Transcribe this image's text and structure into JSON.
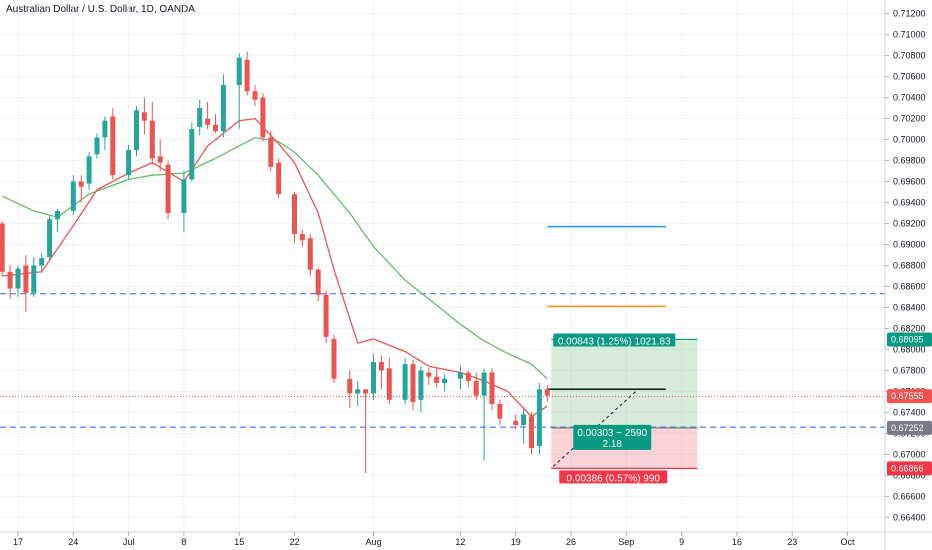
{
  "chart_data": {
    "type": "candlestick",
    "title": "Australian Dollar / U.S. Dollar, 1D, OANDA",
    "xlabel": "",
    "ylabel": "",
    "ylim": [
      0.6626,
      0.7133
    ],
    "x_tick_labels": [
      "17",
      "24",
      "Jul",
      "8",
      "15",
      "22",
      "Aug",
      "12",
      "19",
      "26",
      "Sep",
      "9",
      "16",
      "23",
      "Oct"
    ],
    "x_tick_days": [
      0,
      7,
      14,
      21,
      28,
      35,
      45,
      56,
      63,
      70,
      77,
      84,
      91,
      98,
      105
    ],
    "y_ticks": [
      0.712,
      0.71,
      0.708,
      0.706,
      0.704,
      0.702,
      0.7,
      0.698,
      0.696,
      0.694,
      0.692,
      0.69,
      0.688,
      0.686,
      0.684,
      0.682,
      0.68,
      0.678,
      0.676,
      0.674,
      0.672,
      0.67,
      0.668,
      0.666,
      0.664
    ],
    "y_tick_labels": [
      "0.71200",
      "0.71000",
      "0.70800",
      "0.70600",
      "0.70400",
      "0.70200",
      "0.70000",
      "0.69800",
      "0.69600",
      "0.69400",
      "0.69200",
      "0.69000",
      "0.68800",
      "0.68600",
      "0.68400",
      "0.68200",
      "0.68000",
      "0.67800",
      "0.67600",
      "0.67400",
      "0.67200",
      "0.67000",
      "0.66800",
      "0.66600",
      "0.66400"
    ],
    "candles": [
      {
        "d": -2,
        "o": 0.692,
        "h": 0.6922,
        "l": 0.687,
        "c": 0.6874
      },
      {
        "d": -1,
        "o": 0.6874,
        "h": 0.688,
        "l": 0.6848,
        "c": 0.6858
      },
      {
        "d": 0,
        "o": 0.6858,
        "h": 0.688,
        "l": 0.685,
        "c": 0.6877
      },
      {
        "d": 1,
        "o": 0.688,
        "h": 0.689,
        "l": 0.6836,
        "c": 0.6854
      },
      {
        "d": 2,
        "o": 0.6854,
        "h": 0.6888,
        "l": 0.685,
        "c": 0.688
      },
      {
        "d": 3,
        "o": 0.688,
        "h": 0.6892,
        "l": 0.6873,
        "c": 0.6887
      },
      {
        "d": 4,
        "o": 0.6888,
        "h": 0.6928,
        "l": 0.6885,
        "c": 0.6924
      },
      {
        "d": 5,
        "o": 0.6924,
        "h": 0.6934,
        "l": 0.6912,
        "c": 0.6932
      },
      {
        "d": 7,
        "o": 0.6932,
        "h": 0.6966,
        "l": 0.6928,
        "c": 0.696
      },
      {
        "d": 8,
        "o": 0.696,
        "h": 0.6966,
        "l": 0.694,
        "c": 0.6955
      },
      {
        "d": 9,
        "o": 0.6958,
        "h": 0.6988,
        "l": 0.6952,
        "c": 0.6984
      },
      {
        "d": 10,
        "o": 0.6986,
        "h": 0.7006,
        "l": 0.6982,
        "c": 0.7002
      },
      {
        "d": 11,
        "o": 0.7002,
        "h": 0.7022,
        "l": 0.699,
        "c": 0.7018
      },
      {
        "d": 12,
        "o": 0.7022,
        "h": 0.703,
        "l": 0.6962,
        "c": 0.6966
      },
      {
        "d": 14,
        "o": 0.6966,
        "h": 0.6995,
        "l": 0.6962,
        "c": 0.699
      },
      {
        "d": 15,
        "o": 0.699,
        "h": 0.7032,
        "l": 0.6984,
        "c": 0.7028
      },
      {
        "d": 16,
        "o": 0.7026,
        "h": 0.704,
        "l": 0.7005,
        "c": 0.7018
      },
      {
        "d": 17,
        "o": 0.7018,
        "h": 0.7036,
        "l": 0.6976,
        "c": 0.6982
      },
      {
        "d": 18,
        "o": 0.6984,
        "h": 0.7,
        "l": 0.697,
        "c": 0.6978
      },
      {
        "d": 19,
        "o": 0.6976,
        "h": 0.698,
        "l": 0.6924,
        "c": 0.693
      },
      {
        "d": 21,
        "o": 0.693,
        "h": 0.697,
        "l": 0.6912,
        "c": 0.6962
      },
      {
        "d": 22,
        "o": 0.6962,
        "h": 0.7016,
        "l": 0.696,
        "c": 0.701
      },
      {
        "d": 23,
        "o": 0.7012,
        "h": 0.7038,
        "l": 0.7004,
        "c": 0.703
      },
      {
        "d": 24,
        "o": 0.702,
        "h": 0.7036,
        "l": 0.701,
        "c": 0.7014
      },
      {
        "d": 25,
        "o": 0.7014,
        "h": 0.7024,
        "l": 0.7006,
        "c": 0.7008
      },
      {
        "d": 26,
        "o": 0.7008,
        "h": 0.7062,
        "l": 0.7002,
        "c": 0.7052
      },
      {
        "d": 28,
        "o": 0.7052,
        "h": 0.7082,
        "l": 0.701,
        "c": 0.7078
      },
      {
        "d": 29,
        "o": 0.7076,
        "h": 0.7084,
        "l": 0.7042,
        "c": 0.7046
      },
      {
        "d": 30,
        "o": 0.7046,
        "h": 0.7052,
        "l": 0.7032,
        "c": 0.7038
      },
      {
        "d": 31,
        "o": 0.704,
        "h": 0.7044,
        "l": 0.6998,
        "c": 0.7002
      },
      {
        "d": 32,
        "o": 0.7002,
        "h": 0.7008,
        "l": 0.697,
        "c": 0.6974
      },
      {
        "d": 33,
        "o": 0.6978,
        "h": 0.6982,
        "l": 0.6944,
        "c": 0.6948
      },
      {
        "d": 35,
        "o": 0.6948,
        "h": 0.695,
        "l": 0.6902,
        "c": 0.691
      },
      {
        "d": 36,
        "o": 0.691,
        "h": 0.6914,
        "l": 0.6898,
        "c": 0.6904
      },
      {
        "d": 37,
        "o": 0.6906,
        "h": 0.691,
        "l": 0.687,
        "c": 0.6876
      },
      {
        "d": 38,
        "o": 0.6876,
        "h": 0.6878,
        "l": 0.6846,
        "c": 0.6852
      },
      {
        "d": 39,
        "o": 0.6852,
        "h": 0.6856,
        "l": 0.6806,
        "c": 0.6812
      },
      {
        "d": 40,
        "o": 0.681,
        "h": 0.6814,
        "l": 0.6768,
        "c": 0.6772
      },
      {
        "d": 42,
        "o": 0.6772,
        "h": 0.678,
        "l": 0.6744,
        "c": 0.6758
      },
      {
        "d": 43,
        "o": 0.6758,
        "h": 0.677,
        "l": 0.6746,
        "c": 0.6762
      },
      {
        "d": 44,
        "o": 0.6762,
        "h": 0.6762,
        "l": 0.6682,
        "c": 0.6758
      },
      {
        "d": 45,
        "o": 0.6758,
        "h": 0.6796,
        "l": 0.6752,
        "c": 0.6788
      },
      {
        "d": 46,
        "o": 0.6788,
        "h": 0.6794,
        "l": 0.6762,
        "c": 0.678
      },
      {
        "d": 47,
        "o": 0.6782,
        "h": 0.6792,
        "l": 0.6748,
        "c": 0.6752
      },
      {
        "d": 49,
        "o": 0.6752,
        "h": 0.6792,
        "l": 0.6748,
        "c": 0.6786
      },
      {
        "d": 50,
        "o": 0.6786,
        "h": 0.679,
        "l": 0.6742,
        "c": 0.675
      },
      {
        "d": 51,
        "o": 0.6752,
        "h": 0.6784,
        "l": 0.674,
        "c": 0.678
      },
      {
        "d": 52,
        "o": 0.6778,
        "h": 0.6782,
        "l": 0.6766,
        "c": 0.6774
      },
      {
        "d": 53,
        "o": 0.6774,
        "h": 0.6782,
        "l": 0.6764,
        "c": 0.6768
      },
      {
        "d": 54,
        "o": 0.6768,
        "h": 0.6776,
        "l": 0.676,
        "c": 0.6772
      },
      {
        "d": 56,
        "o": 0.6772,
        "h": 0.6784,
        "l": 0.6762,
        "c": 0.6778
      },
      {
        "d": 57,
        "o": 0.6778,
        "h": 0.678,
        "l": 0.6764,
        "c": 0.677
      },
      {
        "d": 58,
        "o": 0.677,
        "h": 0.6778,
        "l": 0.6752,
        "c": 0.6756
      },
      {
        "d": 59,
        "o": 0.6756,
        "h": 0.6782,
        "l": 0.6694,
        "c": 0.6778
      },
      {
        "d": 60,
        "o": 0.6778,
        "h": 0.6782,
        "l": 0.6742,
        "c": 0.6748
      },
      {
        "d": 61,
        "o": 0.6748,
        "h": 0.6752,
        "l": 0.6728,
        "c": 0.6734
      },
      {
        "d": 63,
        "o": 0.6732,
        "h": 0.6738,
        "l": 0.6724,
        "c": 0.6728
      },
      {
        "d": 64,
        "o": 0.6728,
        "h": 0.6744,
        "l": 0.671,
        "c": 0.6738
      },
      {
        "d": 65,
        "o": 0.6736,
        "h": 0.674,
        "l": 0.67,
        "c": 0.6706
      },
      {
        "d": 66,
        "o": 0.6708,
        "h": 0.6768,
        "l": 0.67,
        "c": 0.6762
      },
      {
        "d": 67,
        "o": 0.6762,
        "h": 0.6766,
        "l": 0.675,
        "c": 0.6756
      }
    ],
    "ema_red": [
      {
        "d": -2,
        "v": 0.687
      },
      {
        "d": 3,
        "v": 0.6874
      },
      {
        "d": 7,
        "v": 0.6918
      },
      {
        "d": 10,
        "v": 0.6952
      },
      {
        "d": 14,
        "v": 0.6968
      },
      {
        "d": 17,
        "v": 0.6978
      },
      {
        "d": 21,
        "v": 0.696
      },
      {
        "d": 24,
        "v": 0.6994
      },
      {
        "d": 28,
        "v": 0.7018
      },
      {
        "d": 30,
        "v": 0.702
      },
      {
        "d": 33,
        "v": 0.6996
      },
      {
        "d": 35,
        "v": 0.6978
      },
      {
        "d": 38,
        "v": 0.693
      },
      {
        "d": 40,
        "v": 0.6876
      },
      {
        "d": 43,
        "v": 0.6806
      },
      {
        "d": 45,
        "v": 0.681
      },
      {
        "d": 49,
        "v": 0.6798
      },
      {
        "d": 52,
        "v": 0.6784
      },
      {
        "d": 56,
        "v": 0.6778
      },
      {
        "d": 59,
        "v": 0.677
      },
      {
        "d": 62,
        "v": 0.676
      },
      {
        "d": 65,
        "v": 0.6736
      },
      {
        "d": 67,
        "v": 0.6746
      }
    ],
    "ema_green": [
      {
        "d": -2,
        "v": 0.6946
      },
      {
        "d": 2,
        "v": 0.6932
      },
      {
        "d": 5,
        "v": 0.6926
      },
      {
        "d": 9,
        "v": 0.6948
      },
      {
        "d": 14,
        "v": 0.6962
      },
      {
        "d": 17,
        "v": 0.6966
      },
      {
        "d": 21,
        "v": 0.6968
      },
      {
        "d": 25,
        "v": 0.6982
      },
      {
        "d": 28,
        "v": 0.6994
      },
      {
        "d": 30,
        "v": 0.7002
      },
      {
        "d": 33,
        "v": 0.6998
      },
      {
        "d": 35,
        "v": 0.6988
      },
      {
        "d": 38,
        "v": 0.6966
      },
      {
        "d": 42,
        "v": 0.693
      },
      {
        "d": 45,
        "v": 0.6898
      },
      {
        "d": 49,
        "v": 0.6866
      },
      {
        "d": 53,
        "v": 0.6842
      },
      {
        "d": 56,
        "v": 0.6824
      },
      {
        "d": 59,
        "v": 0.6808
      },
      {
        "d": 62,
        "v": 0.6796
      },
      {
        "d": 65,
        "v": 0.6786
      },
      {
        "d": 67,
        "v": 0.6772
      }
    ],
    "hlines": [
      {
        "y": 0.6853,
        "color": "#2962ff",
        "style": "dashed"
      },
      {
        "y": 0.6726,
        "color": "#2962ff",
        "style": "dashed"
      },
      {
        "y": 0.6755,
        "color": "#ef5350",
        "style": "dotted"
      }
    ],
    "ray_lines": [
      {
        "y": 0.6917,
        "d0": 67,
        "d1": 82,
        "color": "#2196f3"
      },
      {
        "y": 0.6841,
        "d0": 67,
        "d1": 82,
        "color": "#ff9800"
      },
      {
        "y": 0.6762,
        "d0": 67,
        "d1": 82,
        "color": "#131722"
      }
    ],
    "long_position": {
      "d0": 67.5,
      "d1": 86,
      "entry": 0.67252,
      "target": 0.68095,
      "stop": 0.66866,
      "target_label": "0.00843 (1.25%) 1021.83",
      "stop_label": "0.00386 (0.57%) 990",
      "center_label_1": "0.00303 ~ 2590",
      "center_label_2": "2.18"
    },
    "price_badges": [
      {
        "value": 0.68095,
        "label": "0.68095",
        "color": "#089981"
      },
      {
        "value": 0.67555,
        "label": "0.67555",
        "color": "#ef5350"
      },
      {
        "value": 0.67252,
        "label": "0.67252",
        "color": "#787b86"
      },
      {
        "value": 0.66866,
        "label": "0.66866",
        "color": "#f23645"
      }
    ],
    "colors": {
      "up": "#26a69a",
      "down": "#ef5350",
      "ema_red": "#ef5350",
      "ema_green": "#66bb6a"
    }
  }
}
